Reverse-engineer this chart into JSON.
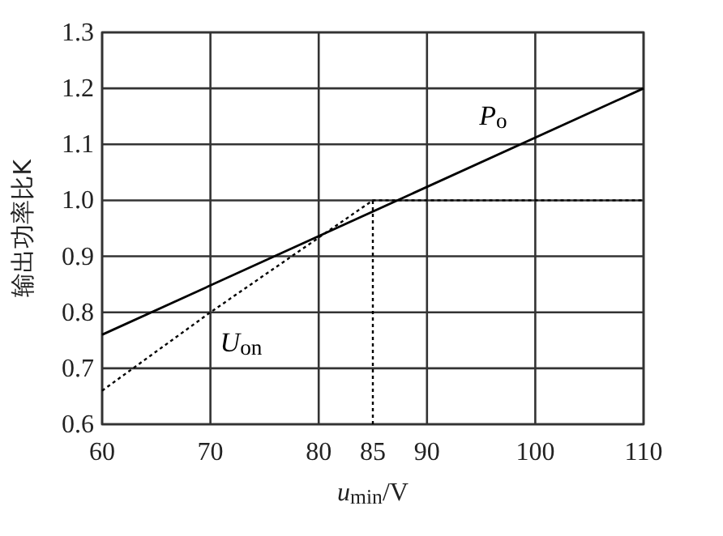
{
  "chart_data": {
    "type": "line",
    "xlabel": "u$_{min}$/V",
    "ylabel": "输出功率比K",
    "xlim": [
      60,
      110
    ],
    "ylim": [
      0.6,
      1.3
    ],
    "xticks": [
      60,
      70,
      80,
      85,
      90,
      100,
      110
    ],
    "yticks": [
      0.6,
      0.7,
      0.8,
      0.9,
      {
        "value": 1,
        "label": "1.0"
      },
      1.1,
      1.2,
      1.3
    ],
    "grid": true,
    "marker": "none",
    "series": [
      {
        "name": "P$_{o}$",
        "color": "#000000",
        "line_style": "solid",
        "x": [
          60,
          110
        ],
        "values": [
          0.76,
          1.2
        ]
      },
      {
        "name": "U$_{on}$",
        "color": "#000000",
        "line_style": "dotted",
        "x": [
          60,
          70,
          85,
          110
        ],
        "values": [
          0.66,
          0.8,
          1.0,
          1.0
        ]
      },
      {
        "color": "#000000",
        "line_style": "dotted",
        "x": [
          85,
          85
        ],
        "values": [
          0.6,
          1.0
        ]
      }
    ]
  }
}
